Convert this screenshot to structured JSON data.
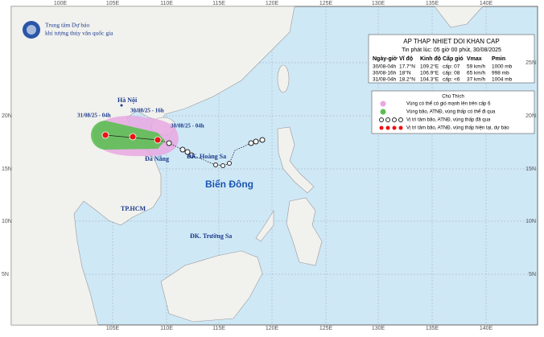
{
  "header": {
    "org_line1": "Trung tâm Dự báo",
    "org_line2": "khí tượng thủy văn quốc gia"
  },
  "axes": {
    "top": [
      "100E",
      "105E",
      "110E",
      "115E",
      "120E",
      "125E",
      "130E",
      "135E",
      "140E"
    ],
    "bottom": [
      "105E",
      "110E",
      "115E",
      "120E",
      "125E",
      "130E",
      "135E",
      "140E"
    ],
    "left": [
      "20N",
      "15N",
      "10N",
      "5N"
    ],
    "right": [
      "25N",
      "20N",
      "15N",
      "10N",
      "5N"
    ]
  },
  "info": {
    "title": "AP THAP NHIET DOI KHAN CAP",
    "issued": "Tin phát lúc: 05 giờ 00 phút, 30/08/2025",
    "columns": [
      "Ngày-giờ",
      "Vĩ độ",
      "Kinh độ",
      "Cấp gió",
      "Vmax",
      "Pmin"
    ],
    "rows": [
      [
        "30/08-04h",
        "17.7°N",
        "109.2°E",
        "cấp: 07",
        "59 km/h",
        "1000 mb"
      ],
      [
        "30/08-16h",
        "18°N",
        "106.9°E",
        "cấp: 08",
        "65 km/h",
        "998 mb"
      ],
      [
        "31/08-04h",
        "18.2°N",
        "104.3°E",
        "cấp: <6",
        "37 km/h",
        "1004 mb"
      ]
    ]
  },
  "legend": {
    "title": "Chú Thích",
    "items": [
      "Vùng có thể có gió mạnh lên trên cấp 6",
      "Vùng bão, ATNĐ, vùng thấp có thể đi qua",
      "Vị trí tâm bão, ATNĐ, vùng thấp đã qua",
      "Vị trí tâm bão, ATNĐ, vùng thấp hiện tại, dự báo"
    ]
  },
  "places": {
    "hanoi": "Hà Nội",
    "danang": "Đà Nẵng",
    "hcm": "TP.HCM",
    "sea": "Biển Đông",
    "paracel": "ĐK. Hoàng Sa",
    "spratly": "ĐK. Trường Sa"
  },
  "track": {
    "t1": "31/08/25 - 04h",
    "t2": "30/08/25 - 16h",
    "t3": "30/08/25 - 04h"
  }
}
